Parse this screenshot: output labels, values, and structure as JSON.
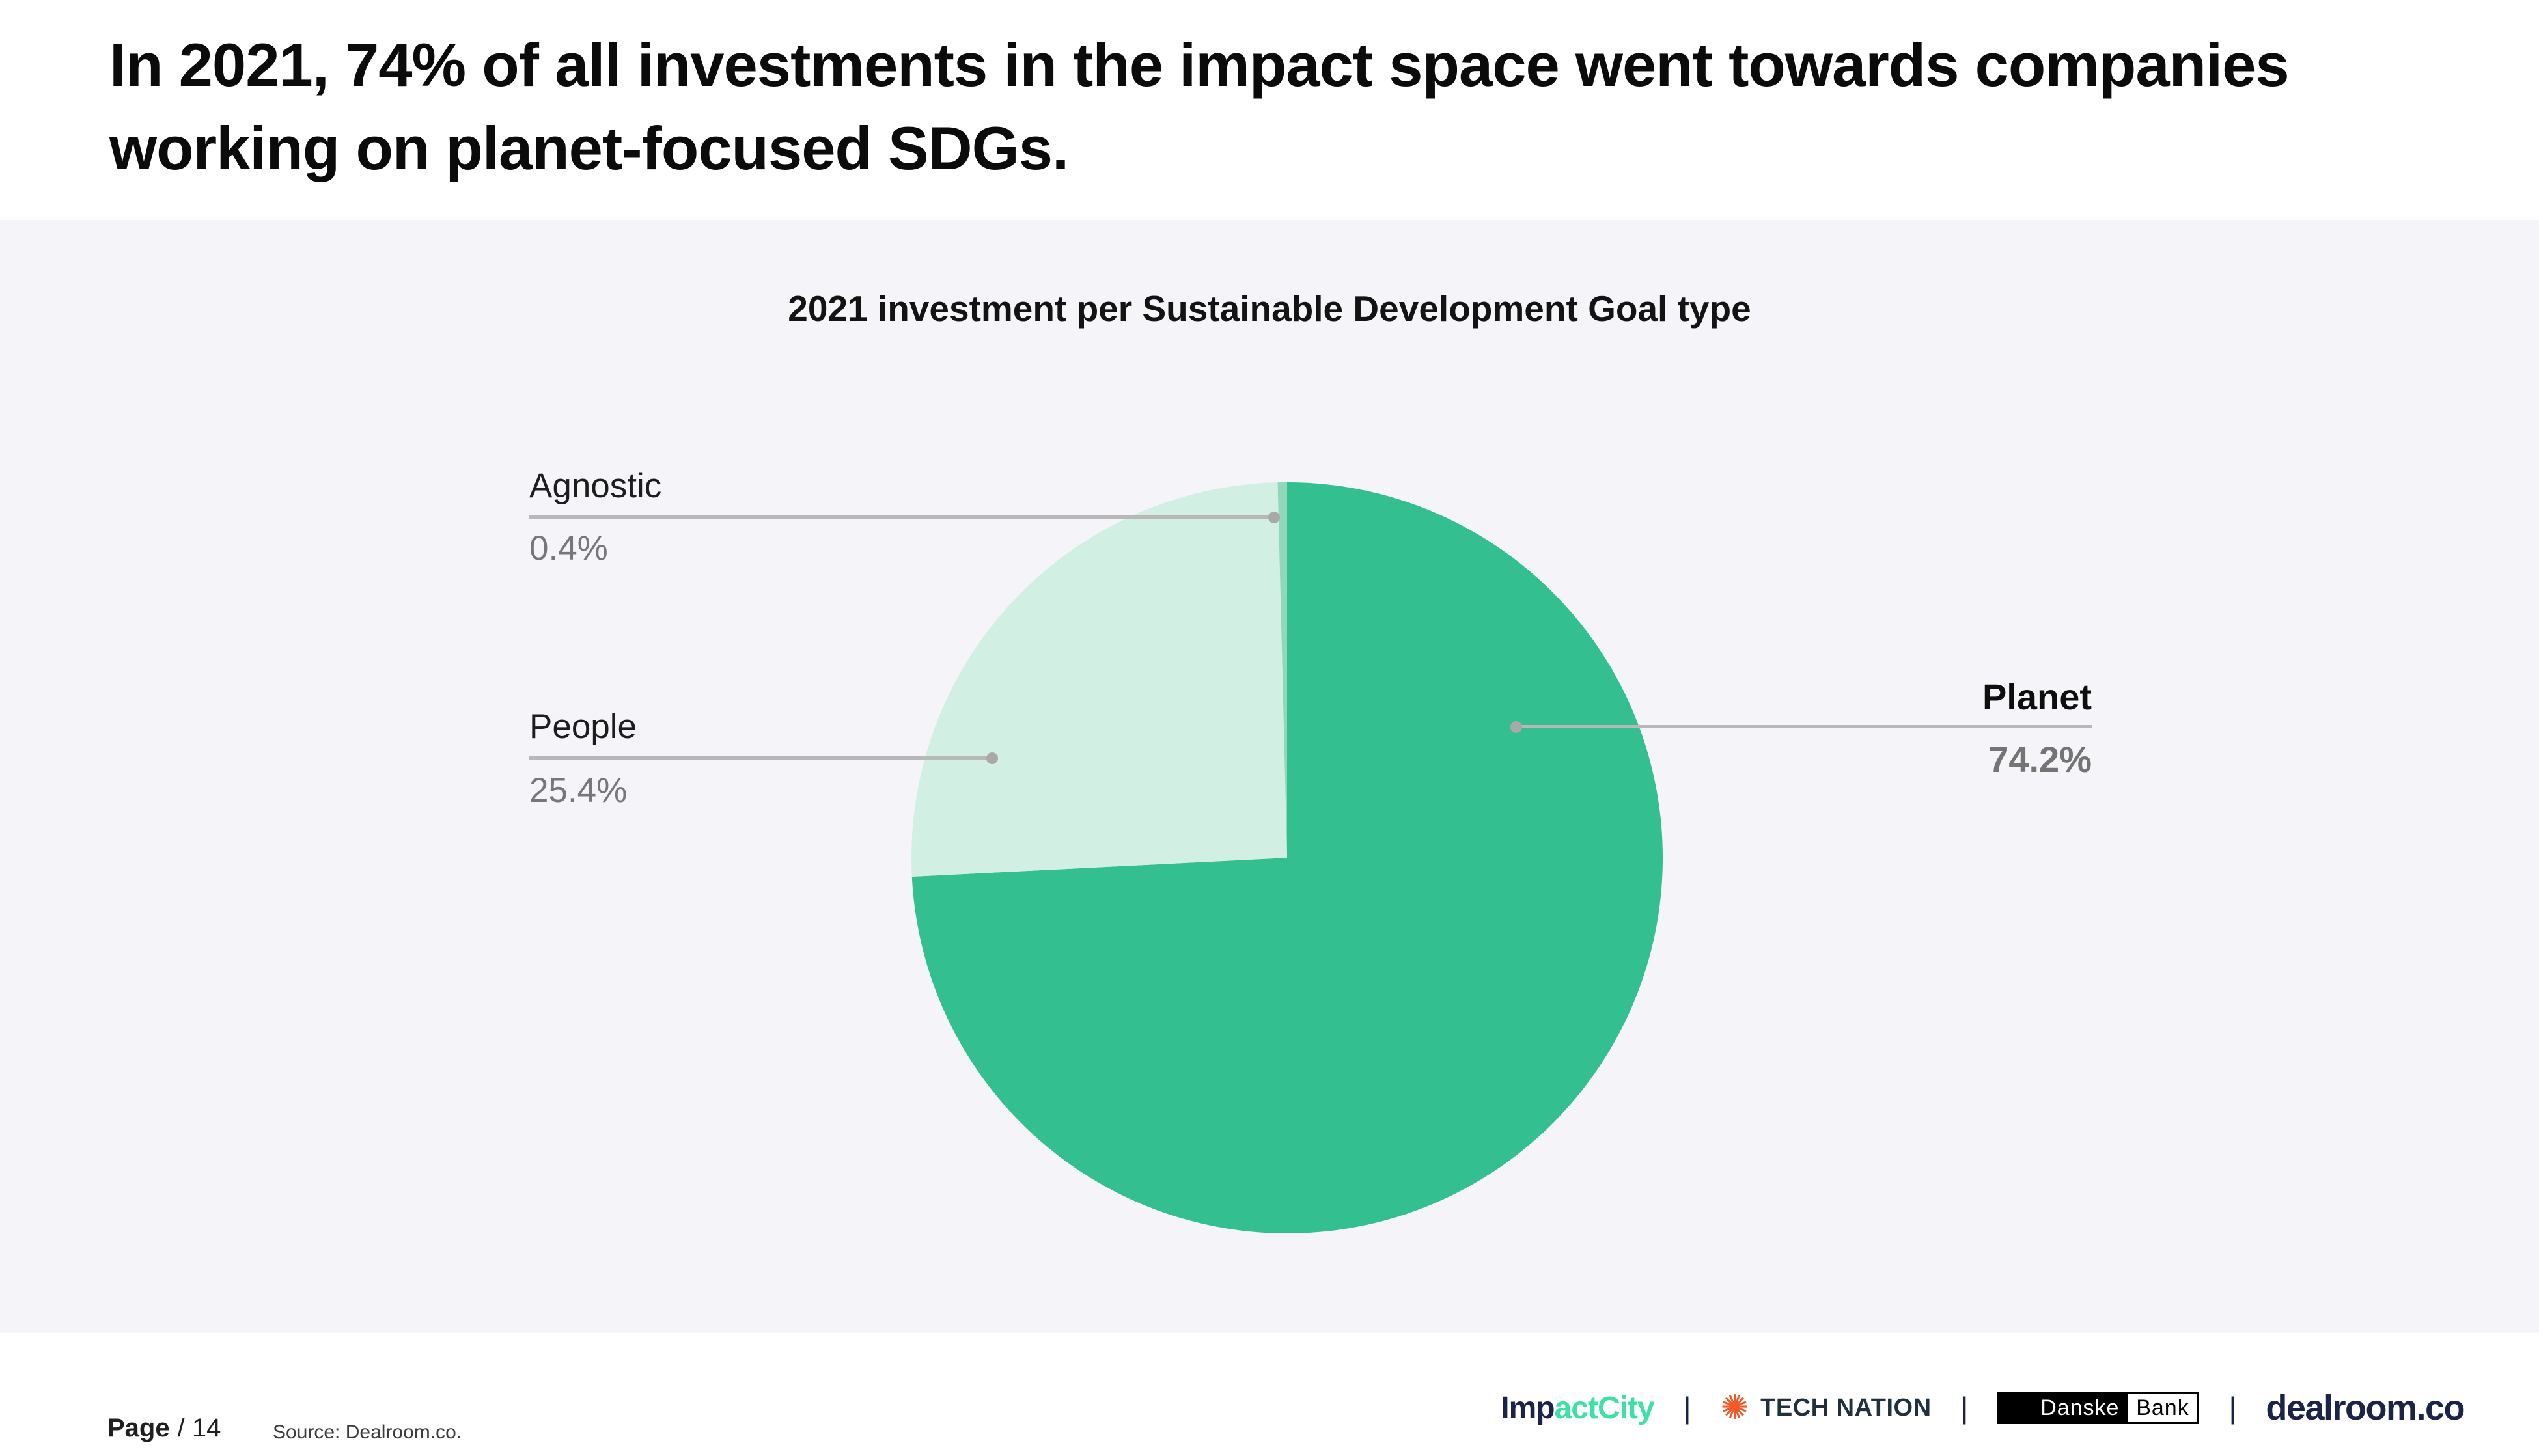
{
  "slide": {
    "title": "In 2021, 74% of all investments in the impact space went towards companies working on planet-focused SDGs.",
    "footer": {
      "page_label": "Page",
      "page_number": "/ 14",
      "source": "Source: Dealroom.co.",
      "separator": "|"
    }
  },
  "chart_data": {
    "type": "pie",
    "title": "2021 investment per Sustainable Development Goal type",
    "unit": "%",
    "legend_position": "none",
    "labels_style": "callout-lines",
    "start_angle": "12-oclock",
    "direction": "clockwise",
    "slices": [
      {
        "label": "Planet",
        "value": 74.2,
        "display_value": "74.2%",
        "color": "#34bf90",
        "emphasized": true
      },
      {
        "label": "People",
        "value": 25.4,
        "display_value": "25.4%",
        "color": "#d2efe4",
        "emphasized": false
      },
      {
        "label": "Agnostic",
        "value": 0.4,
        "display_value": "0.4%",
        "color": "#8fd8ba",
        "emphasized": false
      }
    ]
  },
  "logos": {
    "impactcity": {
      "part1": "Imp",
      "part2": "actCity"
    },
    "technation": {
      "icon": "✺",
      "text": "TECH NATION"
    },
    "danskebank": {
      "part1": "Danske",
      "part2": "Bank"
    },
    "dealroom": {
      "text": "dealroom.co"
    }
  },
  "colors": {
    "panel_bg": "#f5f5f9",
    "planet": "#34bf90",
    "people": "#d2efe4",
    "agnostic": "#8fd8ba",
    "callout_line": "#b8b8b8",
    "callout_dot": "#a9a9a9",
    "pct_text": "#76777a",
    "navy": "#1b2447",
    "mint_logo": "#3fe0a4",
    "orange": "#f05a28"
  }
}
